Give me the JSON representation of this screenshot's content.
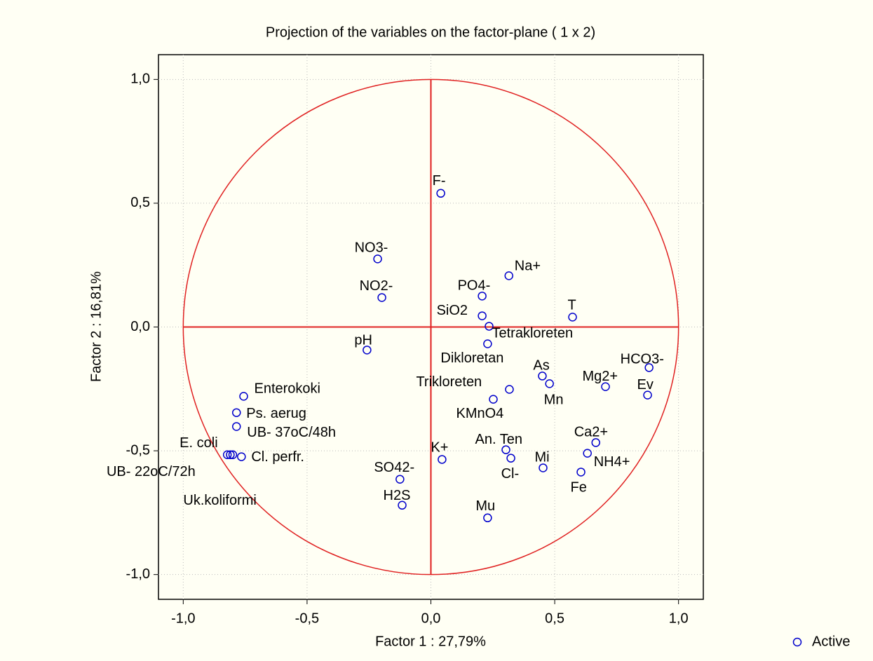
{
  "chart_data": {
    "type": "scatter",
    "title": "Projection of the variables on the factor-plane (  1 x   2)",
    "xlabel": "Factor 1 : 27,79%",
    "ylabel": "Factor 2 : 16,81%",
    "xlim": [
      -1.1,
      1.1
    ],
    "ylim": [
      -1.1,
      1.1
    ],
    "xticks": [
      {
        "value": -1.0,
        "label": "-1,0"
      },
      {
        "value": -0.5,
        "label": "-0,5"
      },
      {
        "value": 0,
        "label": "0,0"
      },
      {
        "value": 0.5,
        "label": "0,5"
      },
      {
        "value": 1.0,
        "label": "1,0"
      }
    ],
    "yticks": [
      {
        "value": -1.0,
        "label": "-1,0"
      },
      {
        "value": -0.5,
        "label": "-0,5"
      },
      {
        "value": 0,
        "label": "0,0"
      },
      {
        "value": 0.5,
        "label": "0,5"
      },
      {
        "value": 1.0,
        "label": "1,0"
      }
    ],
    "grid": true,
    "legend": "bottom-right",
    "series": [
      {
        "name": "Active",
        "color": "#0000cc",
        "labels": [
          "F-",
          "NO3-",
          "Na+",
          "NO2-",
          "PO4-",
          "SiO2",
          "T",
          "Tetrakloreten",
          "pH",
          "Dikloretan",
          "HCO3-",
          "As",
          "Mn",
          "Mg2+",
          "Ev",
          "Trikloreten",
          "KMnO4",
          "Enterokoki",
          "Ps. aerug",
          "UB- 37oC/48h",
          "Ca2+",
          "An. Ten",
          "NH4+",
          "E. coli",
          "UB- 22oC/72h",
          "Uk.koliformi",
          "Cl. perfr.",
          "K+",
          "Cl-",
          "Mi",
          "Fe",
          "SO42-",
          "H2S",
          "Mu"
        ],
        "x": [
          0.04,
          -0.215,
          0.315,
          -0.198,
          0.207,
          0.207,
          0.572,
          0.235,
          -0.258,
          0.229,
          0.881,
          0.45,
          0.479,
          0.705,
          0.875,
          0.317,
          0.252,
          -0.756,
          -0.785,
          -0.785,
          0.666,
          0.303,
          0.632,
          -0.822,
          -0.8,
          -0.81,
          -0.765,
          0.045,
          0.323,
          0.453,
          0.606,
          -0.125,
          -0.116,
          0.229
        ],
        "y": [
          0.54,
          0.275,
          0.207,
          0.119,
          0.125,
          0.045,
          0.04,
          0.003,
          -0.093,
          -0.068,
          -0.164,
          -0.198,
          -0.229,
          -0.241,
          -0.275,
          -0.252,
          -0.292,
          -0.28,
          -0.346,
          -0.402,
          -0.467,
          -0.496,
          -0.51,
          -0.516,
          -0.516,
          -0.516,
          -0.524,
          -0.535,
          -0.53,
          -0.569,
          -0.586,
          -0.615,
          -0.72,
          -0.771
        ]
      }
    ]
  }
}
